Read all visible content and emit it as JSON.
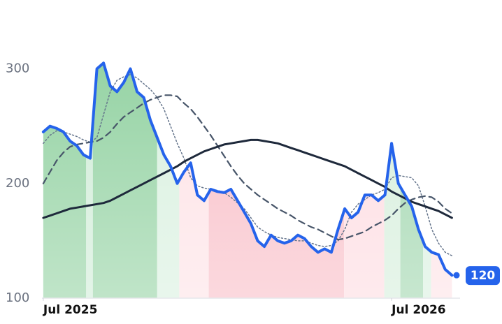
{
  "chart_data": {
    "type": "line",
    "x": [
      0,
      1,
      2,
      3,
      4,
      5,
      6,
      7,
      8,
      9,
      10,
      11,
      12,
      13,
      14,
      15,
      16,
      17,
      18,
      19,
      20,
      21,
      22,
      23,
      24,
      25,
      26,
      27,
      28,
      29,
      30,
      31,
      32,
      33,
      34,
      35,
      36,
      37,
      38,
      39,
      40,
      41,
      42,
      43,
      44,
      45,
      46,
      47,
      48,
      49,
      50,
      51,
      52,
      53,
      54,
      55,
      56,
      57,
      58,
      59,
      60,
      61
    ],
    "series": [
      {
        "color": "#2563eb",
        "style": "solid",
        "width": 4,
        "area": true,
        "values": [
          245,
          250,
          248,
          245,
          237,
          233,
          225,
          222,
          300,
          305,
          285,
          280,
          288,
          300,
          280,
          275,
          255,
          240,
          225,
          215,
          200,
          210,
          218,
          190,
          185,
          195,
          193,
          192,
          195,
          185,
          175,
          165,
          150,
          145,
          155,
          150,
          148,
          150,
          155,
          152,
          145,
          140,
          143,
          140,
          160,
          178,
          170,
          175,
          190,
          190,
          185,
          190,
          235,
          200,
          190,
          180,
          160,
          145,
          140,
          138,
          125,
          120
        ]
      },
      {
        "color": "#64748b",
        "style": "dotted",
        "width": 1.5,
        "values": [
          235,
          242,
          246,
          245,
          243,
          241,
          238,
          236,
          240,
          260,
          280,
          290,
          293,
          295,
          292,
          287,
          282,
          275,
          265,
          250,
          235,
          222,
          205,
          198,
          196,
          195,
          194,
          192,
          188,
          183,
          178,
          170,
          162,
          158,
          155,
          153,
          152,
          151,
          150,
          150,
          148,
          146,
          145,
          146,
          150,
          160,
          175,
          182,
          186,
          190,
          192,
          195,
          205,
          207,
          206,
          205,
          198,
          180,
          160,
          148,
          140,
          137
        ]
      },
      {
        "color": "#475569",
        "style": "dashed",
        "width": 2.2,
        "values": [
          200,
          210,
          220,
          227,
          232,
          234,
          235,
          236,
          237,
          240,
          245,
          252,
          258,
          262,
          266,
          270,
          273,
          275,
          277,
          277,
          276,
          270,
          265,
          258,
          250,
          242,
          233,
          224,
          215,
          207,
          200,
          195,
          190,
          186,
          182,
          178,
          175,
          172,
          168,
          165,
          162,
          160,
          157,
          154,
          151,
          152,
          154,
          156,
          158,
          162,
          165,
          168,
          172,
          178,
          183,
          186,
          188,
          189,
          188,
          184,
          178,
          174
        ]
      },
      {
        "color": "#1e293b",
        "style": "solid",
        "width": 3,
        "values": [
          170,
          172,
          174,
          176,
          178,
          179,
          180,
          181,
          182,
          183,
          185,
          188,
          191,
          194,
          197,
          200,
          203,
          206,
          209,
          212,
          215,
          219,
          222,
          225,
          228,
          230,
          232,
          234,
          235,
          236,
          237,
          238,
          238,
          237,
          236,
          235,
          233,
          231,
          229,
          227,
          225,
          223,
          221,
          219,
          217,
          215,
          212,
          209,
          206,
          203,
          200,
          197,
          193,
          190,
          187,
          184,
          182,
          180,
          178,
          176,
          173,
          170
        ]
      }
    ],
    "zones": [
      {
        "from": -0.2,
        "to": 6.4,
        "color": "#8ccf9c"
      },
      {
        "from": 6.4,
        "to": 7.4,
        "color": "#cdebd5"
      },
      {
        "from": 7.4,
        "to": 17,
        "color": "#8ccf9c"
      },
      {
        "from": 17,
        "to": 20.3,
        "color": "#d6efdd"
      },
      {
        "from": 20.3,
        "to": 24.7,
        "color": "#fde0e4"
      },
      {
        "from": 24.7,
        "to": 44.9,
        "color": "#f8b9c3"
      },
      {
        "from": 44.9,
        "to": 50.9,
        "color": "#fdd9df"
      },
      {
        "from": 50.9,
        "to": 53.3,
        "color": "#d3edd9"
      },
      {
        "from": 53.3,
        "to": 56.7,
        "color": "#99d3a8"
      },
      {
        "from": 56.7,
        "to": 57.9,
        "color": "#d6efdd"
      },
      {
        "from": 57.9,
        "to": 61.9,
        "color": "#fde0e4"
      }
    ],
    "xlim": [
      -0.2,
      61.9
    ],
    "ylim": [
      100,
      360
    ],
    "xticks": [
      {
        "value": 0,
        "label": "Jul 2025"
      },
      {
        "value": 52,
        "label": "Jul 2026"
      }
    ],
    "yticks": [
      100,
      200,
      300
    ],
    "grid": false
  }
}
